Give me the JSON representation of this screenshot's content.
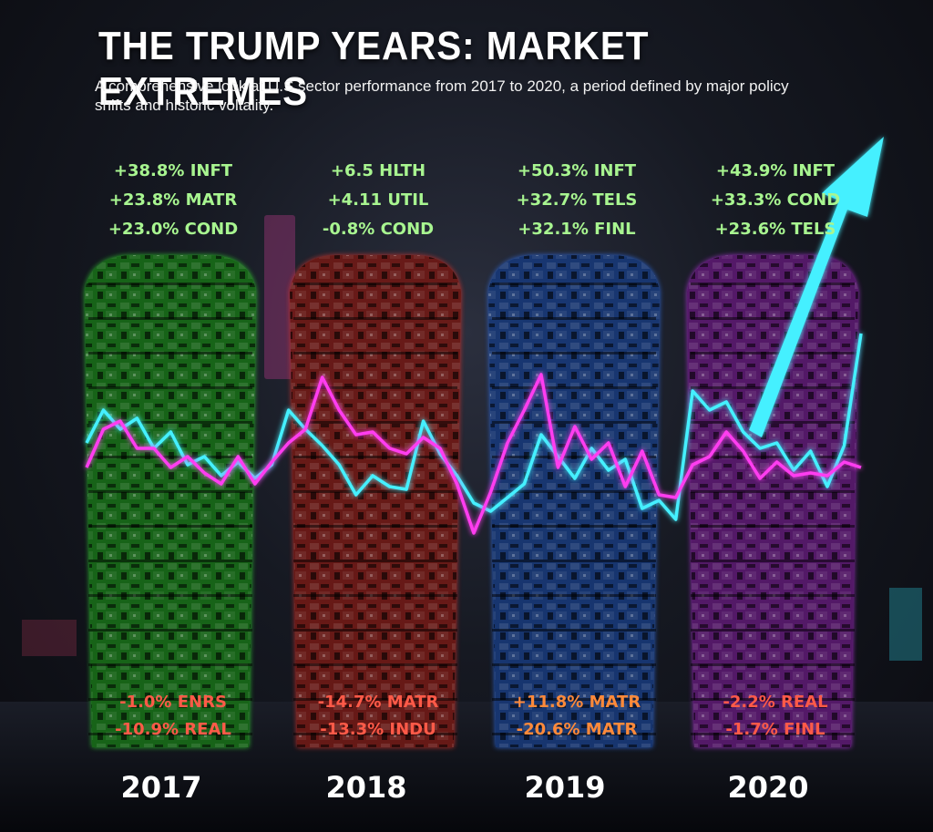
{
  "title": "THE TRUMP YEARS: MARKET EXTREMES",
  "subtitle": "A comprehensive look at U.S sector performance from 2017 to 2020, a period defined by major policy shifts and historic voltality.",
  "colors": {
    "tower_2017": "#2fd12f",
    "tower_2018": "#d8302a",
    "tower_2019": "#2f6ee8",
    "tower_2020": "#b030d8",
    "top_label": "#a8f590",
    "bottom_label_2017": "#ff5a48",
    "bottom_label_2018": "#ff5a48",
    "bottom_label_2019": "#ff8a3a",
    "bottom_label_2020": "#ff5a48",
    "line_cyan": "#45f0ff",
    "line_pink": "#ff3cf0"
  },
  "chart_data": {
    "type": "infographic",
    "categories": [
      "2017",
      "2018",
      "2019",
      "2020"
    ],
    "top_performers": [
      {
        "year": "2017",
        "items": [
          "+38.8% INFT",
          "+23.8% MATR",
          "+23.0% COND"
        ]
      },
      {
        "year": "2018",
        "items": [
          "+6.5 HLTH",
          "+4.11 UTIL",
          "-0.8% COND"
        ]
      },
      {
        "year": "2019",
        "items": [
          "+50.3% INFT",
          "+32.7% TELS",
          "+32.1% FINL"
        ]
      },
      {
        "year": "2020",
        "items": [
          "+43.9% INFT",
          "+33.3% COND",
          "+23.6% TELS"
        ]
      }
    ],
    "bottom_performers": [
      {
        "year": "2017",
        "items": [
          "-1.0% ENRS",
          "-10.9% REAL"
        ]
      },
      {
        "year": "2018",
        "items": [
          "-14.7% MATR",
          "-13.3% INDU"
        ]
      },
      {
        "year": "2019",
        "items": [
          "+11.8% MATR",
          "-20.6% MATR"
        ]
      },
      {
        "year": "2020",
        "items": [
          "-2.2% REAL",
          "-1.7% FINL"
        ]
      }
    ],
    "decorative_series": [
      {
        "name": "cyan",
        "values": [
          58,
          70,
          63,
          67,
          56,
          62,
          50,
          53,
          46,
          51,
          45,
          50,
          70,
          63,
          57,
          50,
          39,
          46,
          42,
          41,
          66,
          54,
          46,
          36,
          33,
          38,
          43,
          61,
          53,
          45,
          56,
          48,
          52,
          34,
          37,
          30,
          77,
          70,
          73,
          62,
          56,
          58,
          48,
          55,
          42,
          57,
          98
        ]
      },
      {
        "name": "pink",
        "values": [
          49,
          63,
          66,
          56,
          56,
          49,
          53,
          47,
          43,
          53,
          43,
          51,
          58,
          63,
          82,
          70,
          61,
          62,
          56,
          54,
          60,
          56,
          43,
          25,
          40,
          58,
          70,
          83,
          49,
          64,
          52,
          58,
          42,
          55,
          39,
          38,
          50,
          53,
          62,
          55,
          45,
          51,
          46,
          47,
          46,
          51,
          49
        ]
      }
    ]
  }
}
